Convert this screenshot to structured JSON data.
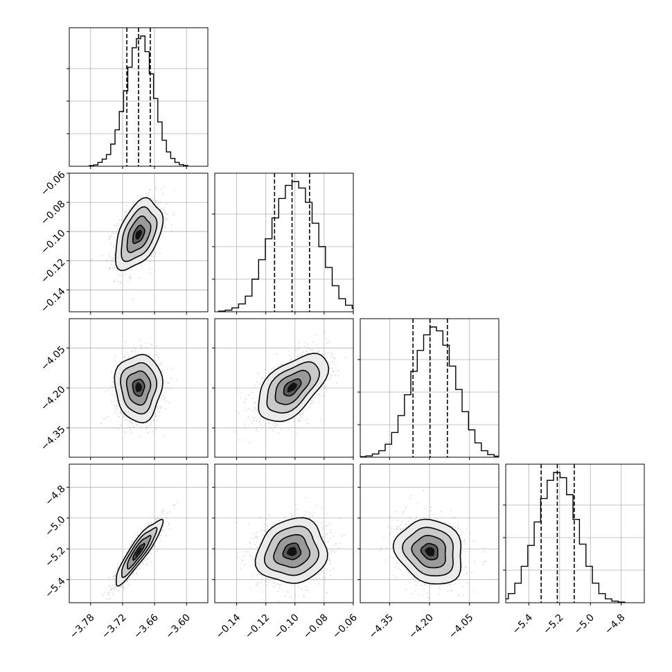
{
  "chart_data": {
    "type": "corner",
    "title": "",
    "variables": [
      {
        "name": "",
        "range": [
          -3.82,
          -3.56
        ],
        "ticks": [
          -3.78,
          -3.72,
          -3.66,
          -3.6
        ],
        "tick_labels": [
          "−3.78",
          "−3.72",
          "−3.66",
          "−3.60"
        ],
        "mean": -3.69,
        "sd": 0.022,
        "quantiles": [
          -3.712,
          -3.69,
          -3.668
        ],
        "hist": [
          0.005,
          0.01,
          0.03,
          0.055,
          0.09,
          0.17,
          0.28,
          0.42,
          0.58,
          0.76,
          0.91,
          0.98,
          1.0,
          0.88,
          0.71,
          0.52,
          0.34,
          0.2,
          0.11,
          0.06,
          0.03,
          0.012,
          0.006
        ]
      },
      {
        "name": "",
        "range": [
          -0.155,
          -0.06
        ],
        "ticks": [
          -0.14,
          -0.12,
          -0.1,
          -0.08,
          -0.06
        ],
        "tick_labels": [
          "−0.14",
          "−0.12",
          "−0.10",
          "−0.08",
          "−0.06"
        ],
        "mean": -0.102,
        "sd": 0.012,
        "quantiles": [
          -0.114,
          -0.102,
          -0.09
        ],
        "hist": [
          0.005,
          0.012,
          0.03,
          0.06,
          0.12,
          0.25,
          0.4,
          0.56,
          0.72,
          0.87,
          0.97,
          1.0,
          0.95,
          0.84,
          0.68,
          0.5,
          0.34,
          0.2,
          0.1,
          0.05,
          0.025,
          0.01
        ]
      },
      {
        "name": "",
        "range": [
          -4.46,
          -3.94
        ],
        "ticks": [
          -4.35,
          -4.2,
          -4.05
        ],
        "tick_labels": [
          "−4.35",
          "−4.20",
          "−4.05"
        ],
        "mean": -4.198,
        "sd": 0.063,
        "quantiles": [
          -4.262,
          -4.198,
          -4.133
        ],
        "hist": [
          0.004,
          0.01,
          0.025,
          0.05,
          0.1,
          0.19,
          0.32,
          0.48,
          0.66,
          0.82,
          0.94,
          1.0,
          0.97,
          0.86,
          0.7,
          0.52,
          0.35,
          0.21,
          0.11,
          0.05,
          0.02,
          0.008
        ]
      },
      {
        "name": "",
        "range": [
          -5.55,
          -4.65
        ],
        "ticks": [
          -5.4,
          -5.2,
          -5.0,
          -4.8
        ],
        "tick_labels": [
          "−5.4",
          "−5.2",
          "−5.0",
          "−4.8"
        ],
        "mean": -5.218,
        "sd": 0.105,
        "quantiles": [
          -5.32,
          -5.215,
          -5.105
        ],
        "hist": [
          0.004,
          0.012,
          0.03,
          0.07,
          0.15,
          0.28,
          0.44,
          0.62,
          0.8,
          0.94,
          1.0,
          0.96,
          0.83,
          0.64,
          0.45,
          0.28,
          0.15,
          0.07,
          0.03,
          0.012,
          0.005
        ]
      }
    ],
    "correlations": [
      [
        1.0,
        0.45,
        0.0,
        0.9
      ],
      [
        0.45,
        1.0,
        0.55,
        0.1
      ],
      [
        0.0,
        0.55,
        1.0,
        -0.15
      ],
      [
        0.9,
        0.1,
        -0.15,
        1.0
      ]
    ],
    "contour_levels_sigma": [
      0.5,
      1.0,
      1.5,
      2.0
    ],
    "quantile_lines": [
      0.16,
      0.5,
      0.84
    ],
    "grid": true
  }
}
